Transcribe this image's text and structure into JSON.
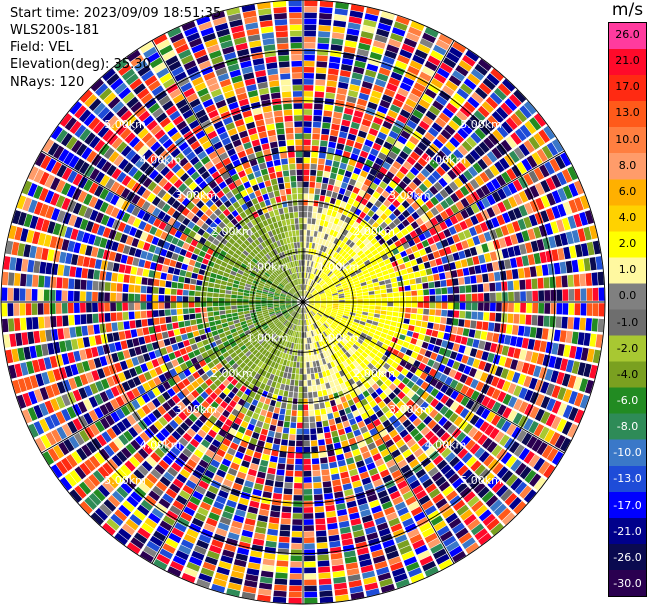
{
  "info": {
    "start_time": "Start time: 2023/09/09 18:51:35",
    "instrument": "WLS200s-181",
    "field": "Field: VEL",
    "elevation": "Elevation(deg): 35.30",
    "nrays": "NRays: 120"
  },
  "colorbar": {
    "unit": "m/s",
    "ticks": [
      "26.0",
      "21.0",
      "17.0",
      "13.0",
      "10.0",
      "8.0",
      "6.0",
      "4.0",
      "2.0",
      "1.0",
      "0.0",
      "-1.0",
      "-2.0",
      "-4.0",
      "-6.0",
      "-8.0",
      "-10.0",
      "-13.0",
      "-17.0",
      "-21.0",
      "-26.0",
      "-30.0"
    ],
    "colors": [
      "#ff3b9e",
      "#ff0a2a",
      "#ff2a12",
      "#ff5a1a",
      "#ff7f40",
      "#ff9c6a",
      "#ffb000",
      "#ffd200",
      "#ffff00",
      "#fff8a0",
      "#808080",
      "#6e6e6e",
      "#a8c832",
      "#7aa020",
      "#228b22",
      "#2e8b57",
      "#3a78c8",
      "#1e4cd8",
      "#0000ff",
      "#00008b",
      "#0a0a50",
      "#2a0050"
    ],
    "text_colors": [
      "#000",
      "#000",
      "#000",
      "#000",
      "#000",
      "#000",
      "#000",
      "#000",
      "#000",
      "#000",
      "#000",
      "#000",
      "#000",
      "#000",
      "#fff",
      "#fff",
      "#fff",
      "#fff",
      "#fff",
      "#fff",
      "#fff",
      "#fff"
    ]
  },
  "chart_data": {
    "type": "heatmap",
    "subtype": "radar PPI (polar)",
    "field": "VEL",
    "units": "m/s",
    "elevation_deg": 35.3,
    "nrays": 120,
    "range_rings_km": [
      1.0,
      2.0,
      3.0,
      4.0,
      5.0
    ],
    "ring_labels": [
      "1.00km",
      "2.00km",
      "3.00km",
      "4.00km",
      "5.00km"
    ],
    "max_range_km": 6.0,
    "spoke_angles_deg": [
      0,
      30,
      60,
      90,
      120,
      150,
      180,
      210,
      240,
      270,
      300,
      330
    ],
    "color_levels": [
      -30.0,
      -26.0,
      -21.0,
      -17.0,
      -13.0,
      -10.0,
      -8.0,
      -6.0,
      -4.0,
      -2.0,
      -1.0,
      0.0,
      1.0,
      2.0,
      4.0,
      6.0,
      8.0,
      10.0,
      13.0,
      17.0,
      21.0,
      26.0
    ],
    "near_field_pattern": {
      "description": "Coherent radial-velocity field within ~2.5 km: positive (approaching/receding) yellow-orange on east sector, negative green on west sector, grey near zero; noisy random velocities beyond",
      "east_sector_velocity_ms": 2.5,
      "west_sector_velocity_ms": -3.0,
      "coherent_radius_km": 2.5
    }
  }
}
